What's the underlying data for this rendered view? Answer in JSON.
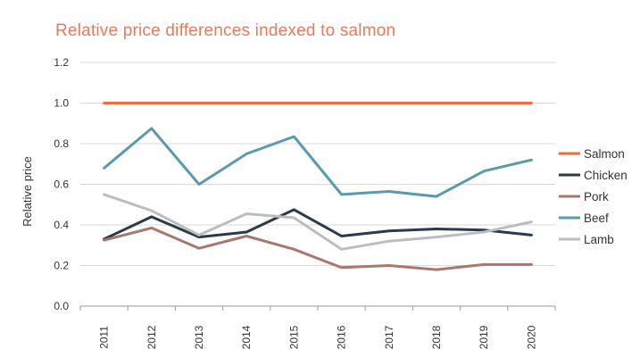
{
  "chart_data": {
    "type": "line",
    "title": "Relative price differences indexed to salmon",
    "xlabel": "",
    "ylabel": "Relative price",
    "x": [
      "2011",
      "2012",
      "2013",
      "2014",
      "2015",
      "2016",
      "2017",
      "2018",
      "2019",
      "2020"
    ],
    "ylim": [
      0,
      1.2
    ],
    "yticks": [
      "0.0",
      "0.2",
      "0.4",
      "0.6",
      "0.8",
      "1.0",
      "1.2"
    ],
    "grid": true,
    "legend": "right",
    "series": [
      {
        "name": "Salmon",
        "color": "#f26b3a",
        "values": [
          1.0,
          1.0,
          1.0,
          1.0,
          1.0,
          1.0,
          1.0,
          1.0,
          1.0,
          1.0
        ]
      },
      {
        "name": "Chicken",
        "color": "#2b3a4a",
        "values": [
          0.33,
          0.44,
          0.34,
          0.365,
          0.475,
          0.345,
          0.37,
          0.38,
          0.375,
          0.35
        ]
      },
      {
        "name": "Pork",
        "color": "#a8796a",
        "values": [
          0.325,
          0.385,
          0.285,
          0.345,
          0.28,
          0.19,
          0.2,
          0.18,
          0.205,
          0.205
        ]
      },
      {
        "name": "Beef",
        "color": "#5a9aac",
        "values": [
          0.68,
          0.875,
          0.6,
          0.75,
          0.835,
          0.55,
          0.565,
          0.54,
          0.665,
          0.72
        ]
      },
      {
        "name": "Lamb",
        "color": "#bdbdbd",
        "values": [
          0.55,
          0.47,
          0.35,
          0.455,
          0.435,
          0.28,
          0.32,
          0.34,
          0.365,
          0.415
        ]
      }
    ]
  }
}
